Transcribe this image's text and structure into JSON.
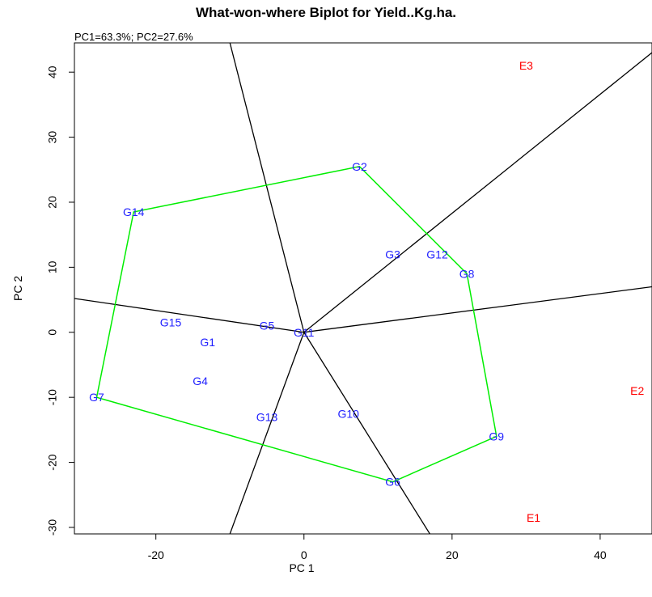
{
  "chart_data": {
    "type": "scatter",
    "title": "What-won-where Biplot for Yield..Kg.ha.",
    "subtitle": "PC1=63.3%; PC2=27.6%",
    "xlabel": "PC 1",
    "ylabel": "PC 2",
    "xlim": [
      -31,
      47
    ],
    "ylim": [
      -31,
      44.5
    ],
    "x_ticks": [
      -20,
      0,
      20,
      40
    ],
    "y_ticks": [
      -30,
      -20,
      -10,
      0,
      10,
      20,
      30,
      40
    ],
    "x_tick_labels": [
      "-20",
      "0",
      "20",
      "40"
    ],
    "y_tick_labels": [
      "-30",
      "-20",
      "-10",
      "0",
      "10",
      "20",
      "30",
      "40"
    ],
    "grid": false,
    "colors": {
      "genotype": "#1f1fff",
      "environment": "#ff0000",
      "polygon": "#00ee00",
      "rays": "#000000"
    },
    "genotypes": [
      {
        "label": "G1",
        "x": -13,
        "y": -1.5
      },
      {
        "label": "G2",
        "x": 7.5,
        "y": 25.5
      },
      {
        "label": "G3",
        "x": 12,
        "y": 12
      },
      {
        "label": "G4",
        "x": -14,
        "y": -7.5
      },
      {
        "label": "G5",
        "x": -5,
        "y": 1
      },
      {
        "label": "G6",
        "x": 12,
        "y": -23
      },
      {
        "label": "G7",
        "x": -28,
        "y": -10
      },
      {
        "label": "G8",
        "x": 22,
        "y": 9
      },
      {
        "label": "G9",
        "x": 26,
        "y": -16
      },
      {
        "label": "G10",
        "x": 6,
        "y": -12.5
      },
      {
        "label": "G11",
        "x": 0,
        "y": 0
      },
      {
        "label": "G12",
        "x": 18,
        "y": 12
      },
      {
        "label": "G13",
        "x": -5,
        "y": -13
      },
      {
        "label": "G14",
        "x": -23,
        "y": 18.5
      },
      {
        "label": "G15",
        "x": -18,
        "y": 1.5
      }
    ],
    "environments": [
      {
        "label": "E1",
        "x": 31,
        "y": -28.5
      },
      {
        "label": "E2",
        "x": 45,
        "y": -9
      },
      {
        "label": "E3",
        "x": 30,
        "y": 41
      }
    ],
    "polygon": [
      {
        "x": 7.5,
        "y": 25.5
      },
      {
        "x": 22,
        "y": 9
      },
      {
        "x": 26,
        "y": -16
      },
      {
        "x": 12,
        "y": -23
      },
      {
        "x": -28,
        "y": -10
      },
      {
        "x": -23,
        "y": 18.5
      }
    ],
    "rays": [
      {
        "x": -10,
        "y": 44.5
      },
      {
        "x": 47,
        "y": 43
      },
      {
        "x": 47,
        "y": 7
      },
      {
        "x": 17,
        "y": -31
      },
      {
        "x": -10,
        "y": -31
      },
      {
        "x": -31,
        "y": 5.2
      }
    ]
  }
}
